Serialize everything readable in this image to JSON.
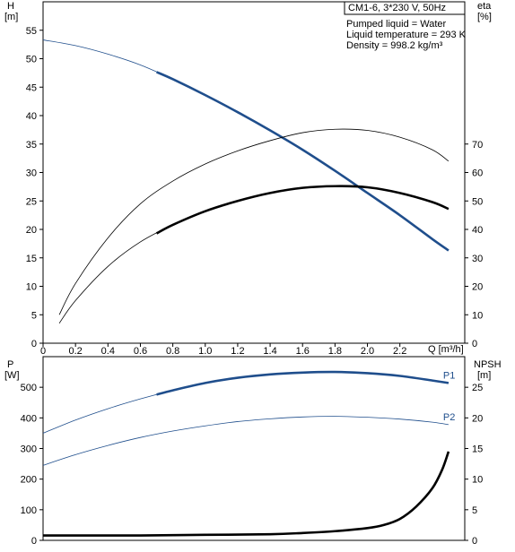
{
  "chart_data": [
    {
      "type": "line",
      "panel": "upper",
      "title": "CM1-6, 3*230 V, 50Hz",
      "annotations": [
        "Pumped liquid = Water",
        "Liquid temperature = 293 K",
        "Density = 998.2 kg/m³"
      ],
      "left_axis": {
        "label": "H",
        "unit": "[m]",
        "ylim": [
          0,
          60
        ],
        "ticks": [
          0,
          5,
          10,
          15,
          20,
          25,
          30,
          35,
          40,
          45,
          50,
          55
        ]
      },
      "right_axis": {
        "label": "eta",
        "unit": "[%]",
        "ylim": [
          0,
          60
        ],
        "ticks": [
          0,
          10,
          20,
          30,
          40,
          50,
          60,
          70
        ],
        "scale": 0.5
      },
      "x_axis": {
        "label": "Q [m³/h]",
        "xlim": [
          0,
          2.6
        ],
        "ticks": [
          0,
          0.2,
          0.4,
          0.6,
          0.8,
          1.0,
          1.2,
          1.4,
          1.6,
          1.8,
          2.0,
          2.2
        ],
        "tick_labels": [
          "0",
          "0.2",
          "0.4",
          "0.6",
          "0.8",
          "1.0",
          "1.2",
          "1.4",
          "1.6",
          "1.8",
          "2.0",
          "2.2"
        ]
      },
      "grid": false,
      "series": [
        {
          "key": "H",
          "axis": "left",
          "color": "#1f4e8c",
          "x": [
            0.0,
            0.2,
            0.4,
            0.6,
            0.8,
            1.0,
            1.2,
            1.4,
            1.6,
            1.8,
            2.0,
            2.2,
            2.4,
            2.5
          ],
          "values": [
            53.3,
            52.3,
            50.8,
            48.9,
            46.4,
            43.6,
            40.6,
            37.4,
            34.0,
            30.3,
            26.4,
            22.5,
            18.3,
            16.3
          ],
          "bold_from": 0.7
        },
        {
          "key": "eta-upper",
          "axis": "right",
          "color": "#000000",
          "x": [
            0.1,
            0.2,
            0.4,
            0.6,
            0.8,
            1.0,
            1.2,
            1.4,
            1.6,
            1.8,
            2.0,
            2.2,
            2.4,
            2.5
          ],
          "values": [
            5,
            10.5,
            18.5,
            24.5,
            28.5,
            31.5,
            33.8,
            35.6,
            37,
            37.6,
            37.4,
            36.2,
            34,
            32
          ],
          "bold_from": null
        },
        {
          "key": "eta-lower",
          "axis": "right",
          "color": "#000000",
          "x": [
            0.1,
            0.2,
            0.4,
            0.6,
            0.8,
            1.0,
            1.2,
            1.4,
            1.6,
            1.8,
            2.0,
            2.2,
            2.4,
            2.5
          ],
          "values": [
            3.5,
            7.5,
            13.5,
            17.8,
            20.8,
            23.2,
            25,
            26.4,
            27.3,
            27.6,
            27.4,
            26.4,
            24.8,
            23.6
          ],
          "bold_from": 0.7
        }
      ]
    },
    {
      "type": "line",
      "panel": "lower",
      "left_axis": {
        "label": "P",
        "unit": "[W]",
        "ylim": [
          0,
          600
        ],
        "ticks": [
          0,
          100,
          200,
          300,
          400,
          500
        ]
      },
      "right_axis": {
        "label": "NPSH",
        "unit": "[m]",
        "ylim": [
          0,
          30
        ],
        "ticks": [
          0,
          5,
          10,
          15,
          20,
          25
        ]
      },
      "x_axis": {
        "xlim": [
          0,
          2.6
        ]
      },
      "grid": false,
      "series": [
        {
          "key": "P1",
          "name": "P1",
          "axis": "left",
          "color": "#1f4e8c",
          "x": [
            0.0,
            0.2,
            0.4,
            0.6,
            0.8,
            1.0,
            1.2,
            1.4,
            1.6,
            1.8,
            2.0,
            2.2,
            2.4,
            2.5
          ],
          "values": [
            350,
            393,
            430,
            462,
            490,
            514,
            531,
            542,
            548,
            550,
            546,
            537,
            522,
            514
          ],
          "bold_from": 0.7
        },
        {
          "key": "P2",
          "name": "P2",
          "axis": "left",
          "color": "#1f4e8c",
          "x": [
            0.0,
            0.2,
            0.4,
            0.6,
            0.8,
            1.0,
            1.2,
            1.4,
            1.6,
            1.8,
            2.0,
            2.2,
            2.4,
            2.5
          ],
          "values": [
            245,
            280,
            310,
            336,
            357,
            374,
            388,
            397,
            403,
            405,
            402,
            396,
            386,
            378
          ],
          "bold_from": null
        },
        {
          "key": "NPSH",
          "axis": "right",
          "color": "#000000",
          "x": [
            0.0,
            0.6,
            1.0,
            1.4,
            1.6,
            1.8,
            2.0,
            2.1,
            2.2,
            2.3,
            2.4,
            2.46,
            2.5
          ],
          "values": [
            0.8,
            0.8,
            0.9,
            1.0,
            1.2,
            1.5,
            2.0,
            2.5,
            3.5,
            5.5,
            8.5,
            11.5,
            14.5
          ],
          "bold_from": 0.0
        }
      ]
    }
  ]
}
